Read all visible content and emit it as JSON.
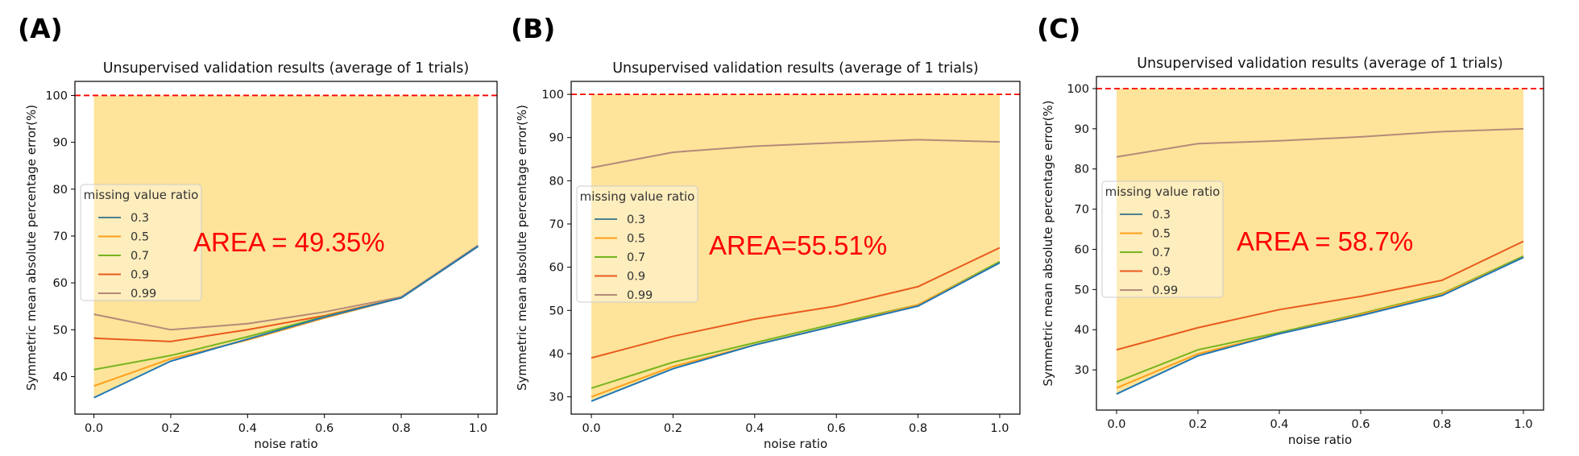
{
  "colors": {
    "fill": "#fde49a",
    "reference_line": "#ff0000",
    "area_text": "#ff0000",
    "series": [
      "#4f7f8f",
      "#ff9f1c",
      "#77b41f",
      "#ea5a1e",
      "#b48a7a"
    ],
    "first_series_lower": "#1f77b4"
  },
  "chart_data": [
    {
      "panel": "(A)",
      "type": "line",
      "title": "Unsupervised validation results (average of 1 trials)",
      "xlabel": "noise ratio",
      "ylabel": "Symmetric mean absolute percentage error(%)",
      "x": [
        0.0,
        0.2,
        0.4,
        0.6,
        0.8,
        1.0
      ],
      "xticks": [
        "0.0",
        "0.2",
        "0.4",
        "0.6",
        "0.8",
        "1.0"
      ],
      "ylim": [
        32,
        103
      ],
      "yticks": [
        40,
        50,
        60,
        70,
        80,
        90,
        100
      ],
      "reference_line": 100,
      "legend_title": "missing value ratio",
      "legend_position": "center-left",
      "grid": false,
      "series": [
        {
          "name": "0.3",
          "values": [
            35.5,
            43.3,
            48.0,
            52.7,
            56.8,
            67.8
          ]
        },
        {
          "name": "0.5",
          "values": [
            38.0,
            43.8,
            47.8,
            52.5,
            56.8,
            67.8
          ]
        },
        {
          "name": "0.7",
          "values": [
            41.5,
            44.5,
            48.5,
            52.8,
            56.8,
            67.8
          ]
        },
        {
          "name": "0.9",
          "values": [
            48.2,
            47.5,
            50.0,
            53.0,
            56.8,
            67.8
          ]
        },
        {
          "name": "0.99",
          "values": [
            53.3,
            50.0,
            51.3,
            53.8,
            57.0,
            68.0
          ]
        }
      ],
      "annotation": "AREA = 49.35%"
    },
    {
      "panel": "(B)",
      "type": "line",
      "title": "Unsupervised validation results (average of 1 trials)",
      "xlabel": "noise ratio",
      "ylabel": "Symmetric mean absolute percentage error(%)",
      "x": [
        0.0,
        0.2,
        0.4,
        0.6,
        0.8,
        1.0
      ],
      "xticks": [
        "0.0",
        "0.2",
        "0.4",
        "0.6",
        "0.8",
        "1.0"
      ],
      "ylim": [
        26,
        103
      ],
      "yticks": [
        30,
        40,
        50,
        60,
        70,
        80,
        90,
        100
      ],
      "reference_line": 100,
      "legend_title": "missing value ratio",
      "legend_position": "center-left",
      "grid": false,
      "series": [
        {
          "name": "0.3",
          "values": [
            29.0,
            36.5,
            42.0,
            46.5,
            51.0,
            61.0
          ]
        },
        {
          "name": "0.5",
          "values": [
            30.0,
            37.0,
            42.0,
            46.5,
            51.3,
            61.0
          ]
        },
        {
          "name": "0.7",
          "values": [
            32.0,
            38.0,
            42.5,
            47.0,
            51.3,
            61.3
          ]
        },
        {
          "name": "0.9",
          "values": [
            39.0,
            44.0,
            48.0,
            51.0,
            55.5,
            64.5
          ]
        },
        {
          "name": "0.99",
          "values": [
            83.0,
            86.6,
            88.0,
            88.8,
            89.5,
            89.0
          ]
        }
      ],
      "annotation": "AREA=55.51%"
    },
    {
      "panel": "(C)",
      "type": "line",
      "title": "Unsupervised validation results (average of 1 trials)",
      "xlabel": "noise ratio",
      "ylabel": "Symmetric mean absolute percentage error(%)",
      "x": [
        0.0,
        0.2,
        0.4,
        0.6,
        0.8,
        1.0
      ],
      "xticks": [
        "0.0",
        "0.2",
        "0.4",
        "0.6",
        "0.8",
        "1.0"
      ],
      "ylim": [
        20,
        103
      ],
      "yticks": [
        30,
        40,
        50,
        60,
        70,
        80,
        90,
        100
      ],
      "reference_line": 100,
      "legend_title": "missing value ratio",
      "legend_position": "center-left",
      "grid": false,
      "series": [
        {
          "name": "0.3",
          "values": [
            24.0,
            33.5,
            39.0,
            43.5,
            48.5,
            58.0
          ]
        },
        {
          "name": "0.5",
          "values": [
            25.5,
            34.0,
            39.0,
            43.8,
            48.8,
            58.0
          ]
        },
        {
          "name": "0.7",
          "values": [
            27.0,
            35.0,
            39.3,
            44.0,
            49.0,
            58.3
          ]
        },
        {
          "name": "0.9",
          "values": [
            35.0,
            40.5,
            45.0,
            48.3,
            52.3,
            62.0
          ]
        },
        {
          "name": "0.99",
          "values": [
            83.0,
            86.3,
            87.0,
            88.0,
            89.3,
            90.0
          ]
        }
      ],
      "annotation": "AREA = 58.7%"
    }
  ]
}
